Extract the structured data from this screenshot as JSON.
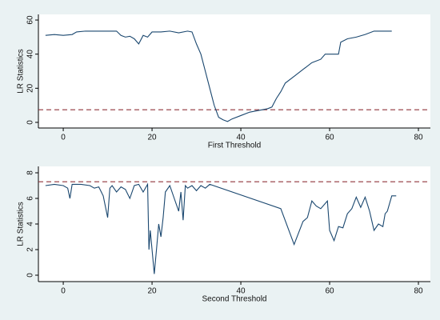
{
  "chart_data": [
    {
      "type": "line",
      "xlabel": "First Threshold",
      "ylabel": "LR Statistics",
      "color": "#1a476f",
      "x": [
        -4,
        -2,
        0,
        2,
        3,
        5,
        10,
        12,
        13,
        14,
        15,
        16,
        17,
        18,
        19,
        20,
        22,
        24,
        26,
        28,
        29,
        30,
        31,
        32,
        33,
        34,
        35,
        36,
        37,
        38,
        40,
        42,
        44,
        46,
        47,
        48,
        49,
        50,
        52,
        54,
        56,
        58,
        59,
        62,
        62.5,
        64,
        66,
        68,
        70,
        74
      ],
      "values": [
        51,
        51.5,
        51,
        51.5,
        53,
        53.5,
        53.5,
        53.5,
        51,
        50,
        50.5,
        49,
        46,
        51,
        50,
        53,
        53,
        53.5,
        52.5,
        53.5,
        53,
        46,
        40,
        30,
        20,
        10,
        3,
        1.5,
        0.5,
        2,
        4,
        6,
        7,
        8,
        9,
        14,
        18,
        23,
        27,
        31,
        35,
        37,
        40,
        40,
        47,
        49,
        50,
        51.5,
        53.5,
        53.5
      ],
      "hline": {
        "value": 7.4,
        "color": "#90353b"
      },
      "xlim": [
        -5.6,
        82.7
      ],
      "xticks": [
        0,
        20,
        40,
        60,
        80
      ],
      "ylim": [
        -3.3,
        63.3
      ],
      "yticks": [
        0,
        20,
        40,
        60
      ]
    },
    {
      "type": "line",
      "xlabel": "Second Threshold",
      "ylabel": "LR Statistics",
      "color": "#1a476f",
      "x": [
        -4,
        -2,
        0,
        1,
        1.5,
        2,
        4,
        6,
        7,
        8,
        9,
        10,
        10.5,
        11,
        12,
        13,
        14,
        15,
        16,
        17,
        18,
        19,
        19.3,
        19.6,
        20,
        20.5,
        21,
        21.5,
        22,
        22.5,
        23,
        24,
        25,
        26,
        26.5,
        27,
        27.5,
        28,
        29,
        30,
        31,
        32,
        33,
        49,
        52,
        54,
        55,
        56,
        57,
        58,
        59.5,
        60,
        61,
        62,
        63,
        64,
        65,
        66,
        67,
        68,
        69,
        70,
        71,
        72,
        72.5,
        73,
        74,
        75
      ],
      "values": [
        7,
        7.1,
        7,
        6.8,
        6,
        7.1,
        7.1,
        7,
        6.8,
        6.9,
        6.2,
        4.5,
        6.8,
        7,
        6.5,
        6.9,
        6.7,
        6,
        7,
        7.1,
        6.5,
        7.1,
        2,
        3.5,
        2,
        0.1,
        2,
        4,
        3,
        4.5,
        6.5,
        7,
        6,
        5,
        6.5,
        4.3,
        7,
        6.8,
        7,
        6.6,
        7,
        6.8,
        7.1,
        5.2,
        2.4,
        4.2,
        4.5,
        5.8,
        5.4,
        5.2,
        5.8,
        3.5,
        2.7,
        3.8,
        3.7,
        4.8,
        5.2,
        6.1,
        5.3,
        6.1,
        5,
        3.5,
        4,
        3.8,
        4.8,
        5,
        6.2,
        6.2
      ],
      "hline": {
        "value": 7.3,
        "color": "#90353b"
      },
      "xlim": [
        -5.6,
        82.7
      ],
      "xticks": [
        0,
        20,
        40,
        60,
        80
      ],
      "ylim": [
        -0.5,
        8.5
      ],
      "yticks": [
        0,
        2,
        4,
        6,
        8
      ]
    }
  ]
}
